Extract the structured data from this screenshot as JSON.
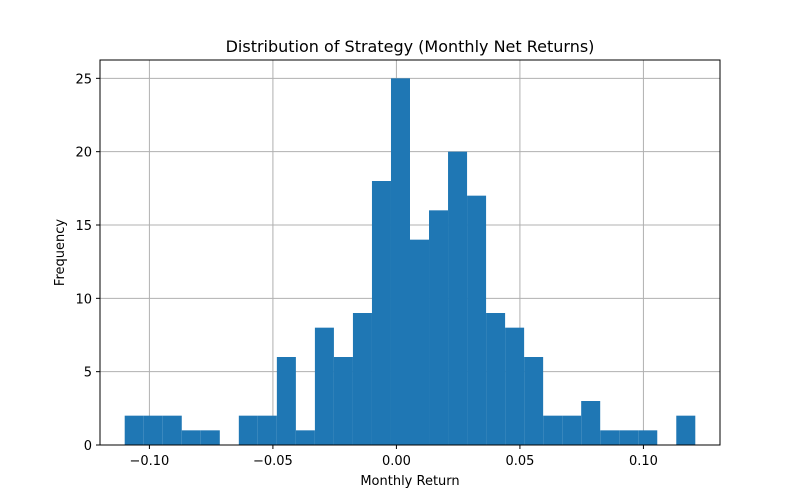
{
  "chart_data": {
    "type": "bar",
    "title": "Distribution of Strategy (Monthly Net Returns)",
    "xlabel": "Monthly Return",
    "ylabel": "Frequency",
    "xlim": [
      -0.12,
      0.131
    ],
    "ylim": [
      0,
      26.25
    ],
    "grid": true,
    "bar_color": "#1f77b4",
    "bin_width": 0.0077,
    "bin_start": -0.11,
    "values": [
      2,
      2,
      2,
      1,
      1,
      0,
      2,
      2,
      6,
      1,
      8,
      6,
      9,
      18,
      25,
      14,
      16,
      20,
      17,
      9,
      8,
      6,
      2,
      2,
      3,
      1,
      1,
      1,
      0,
      2
    ],
    "xticks": [
      -0.1,
      -0.05,
      0.0,
      0.05,
      0.1
    ],
    "xtick_labels": [
      "−0.10",
      "−0.05",
      "0.00",
      "0.05",
      "0.10"
    ],
    "yticks": [
      0,
      5,
      10,
      15,
      20,
      25
    ],
    "ytick_labels": [
      "0",
      "5",
      "10",
      "15",
      "20",
      "25"
    ]
  }
}
